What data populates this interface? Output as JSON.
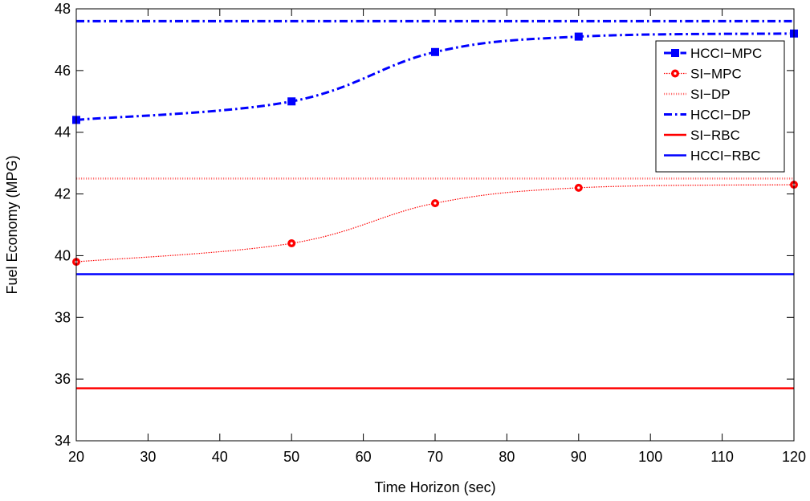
{
  "chart_data": {
    "type": "line",
    "xlabel": "Time Horizon (sec)",
    "ylabel": "Fuel Economy (MPG)",
    "xlim": [
      20,
      120
    ],
    "ylim": [
      34,
      48
    ],
    "xticks": [
      20,
      30,
      40,
      50,
      60,
      70,
      80,
      90,
      100,
      110,
      120
    ],
    "yticks": [
      34,
      36,
      38,
      40,
      42,
      44,
      46,
      48
    ],
    "grid": false,
    "legend_position": "top-right",
    "series": [
      {
        "name": "HCCI−MPC",
        "color": "#0000ff",
        "style": "dashdot",
        "marker": "square",
        "points": [
          [
            20,
            44.4
          ],
          [
            50,
            45.0
          ],
          [
            70,
            46.6
          ],
          [
            90,
            47.1
          ],
          [
            120,
            47.2
          ]
        ]
      },
      {
        "name": "SI−MPC",
        "color": "#ff0000",
        "style": "dotted",
        "marker": "circle",
        "points": [
          [
            20,
            39.8
          ],
          [
            50,
            40.4
          ],
          [
            70,
            41.7
          ],
          [
            90,
            42.2
          ],
          [
            120,
            42.3
          ]
        ]
      },
      {
        "name": "SI−DP",
        "color": "#ff0000",
        "style": "dotted-thick",
        "marker": "none",
        "points": [
          [
            20,
            42.5
          ],
          [
            120,
            42.5
          ]
        ]
      },
      {
        "name": "HCCI−DP",
        "color": "#0000ff",
        "style": "dashdot",
        "marker": "none",
        "points": [
          [
            20,
            47.6
          ],
          [
            120,
            47.6
          ]
        ]
      },
      {
        "name": "SI−RBC",
        "color": "#ff0000",
        "style": "solid",
        "marker": "none",
        "points": [
          [
            20,
            35.7
          ],
          [
            120,
            35.7
          ]
        ]
      },
      {
        "name": "HCCI−RBC",
        "color": "#0000ff",
        "style": "solid",
        "marker": "none",
        "points": [
          [
            20,
            39.4
          ],
          [
            120,
            39.4
          ]
        ]
      }
    ]
  }
}
